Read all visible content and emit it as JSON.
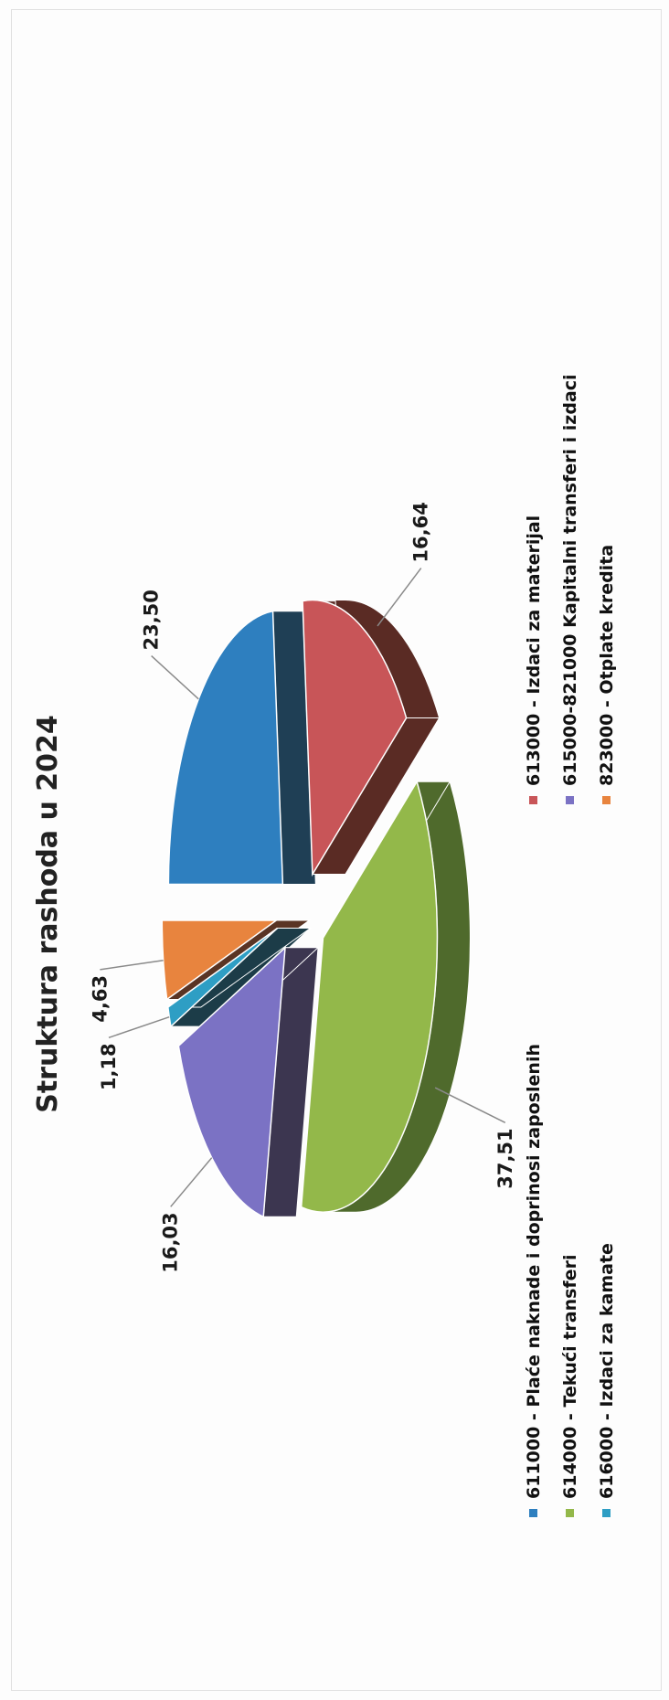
{
  "chart_data": {
    "type": "pie",
    "title": "Struktura rashoda u 2024",
    "three_d": true,
    "exploded": true,
    "legend_position": "bottom",
    "slices": [
      {
        "code": "611000",
        "label": "611000 - Plaće naknade i doprinosi zaposlenih",
        "value": 23.5,
        "value_label": "23,50",
        "color": "#2e7fbf",
        "side_color": "#1f3f55"
      },
      {
        "code": "613000",
        "label": "613000 - Izdaci za materijal",
        "value": 16.64,
        "value_label": "16,64",
        "color": "#c85558",
        "side_color": "#5a2b24"
      },
      {
        "code": "614000",
        "label": "614000 - Tekući transferi",
        "value": 37.51,
        "value_label": "37,51",
        "color": "#93b84a",
        "side_color": "#4f6a2c"
      },
      {
        "code": "615000",
        "label": "615000-821000 Kapitalni transferi i izdaci",
        "value": 16.03,
        "value_label": "16,03",
        "color": "#7b72c4",
        "side_color": "#3c3650"
      },
      {
        "code": "616000",
        "label": "616000 - Izdaci za kamate",
        "value": 1.18,
        "value_label": "1,18",
        "color": "#2e9ec4",
        "side_color": "#1c3c48"
      },
      {
        "code": "823000",
        "label": "823000 - Otplate kredita",
        "value": 4.63,
        "value_label": "4,63",
        "color": "#e8843e",
        "side_color": "#5a3424"
      }
    ]
  }
}
